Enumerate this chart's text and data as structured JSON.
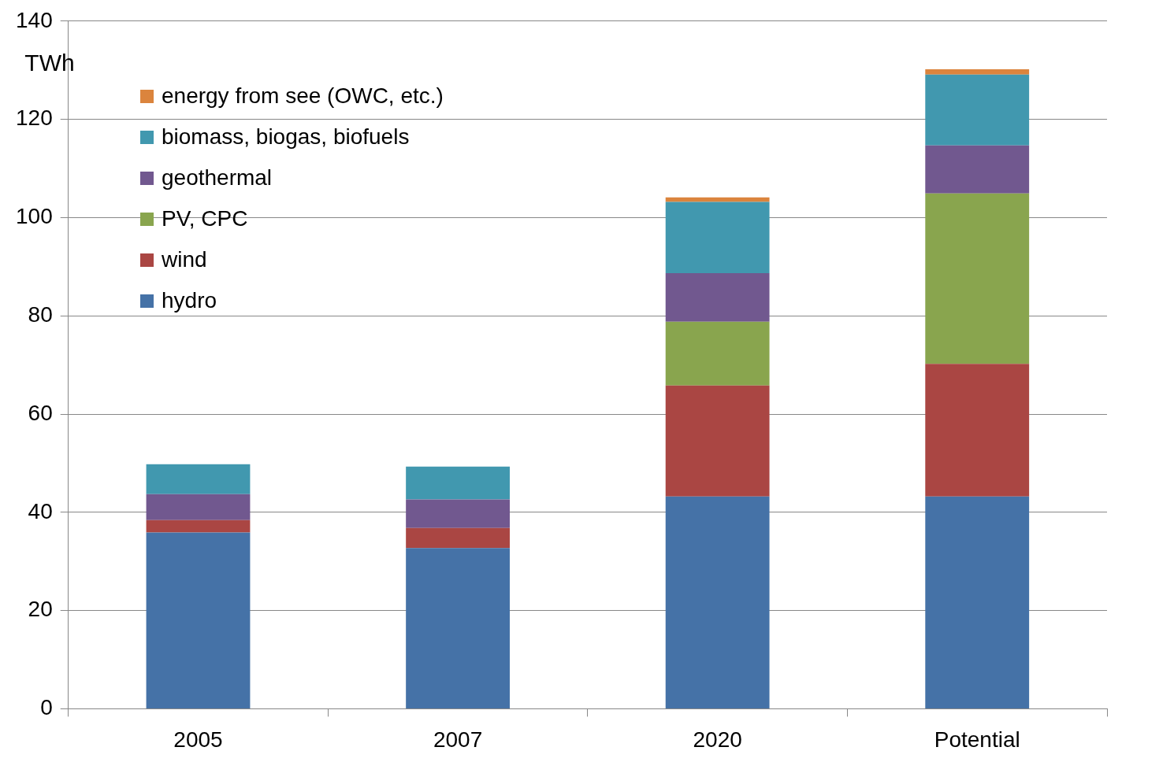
{
  "chart_data": {
    "type": "bar",
    "ylabel": "TWh",
    "stacked": true,
    "grid": "y",
    "legend": "top left",
    "categories": [
      "2005",
      "2007",
      "2020",
      "Potential"
    ],
    "ylim": [
      0,
      140
    ],
    "yticks": [
      0,
      20,
      40,
      60,
      80,
      100,
      120,
      140
    ],
    "series": [
      {
        "name": "hydro",
        "color": "#4572a7",
        "values": [
          35.9,
          32.7,
          43.2,
          43.2
        ]
      },
      {
        "name": "wind",
        "color": "#aa4643",
        "values": [
          2.5,
          4.1,
          22.6,
          27
        ]
      },
      {
        "name": "PV, CPC",
        "color": "#89a54e",
        "values": [
          0,
          0,
          13,
          34.7
        ]
      },
      {
        "name": "geothermal",
        "color": "#71588f",
        "values": [
          5.3,
          5.8,
          9.9,
          9.8
        ]
      },
      {
        "name": "biomass, biogas, biofuels",
        "color": "#4198af",
        "values": [
          6.1,
          6.7,
          14.5,
          14.4
        ]
      },
      {
        "name": "energy from see (OWC, etc.)",
        "color": "#db843d",
        "values": [
          0,
          0,
          0.9,
          1.1
        ]
      }
    ]
  }
}
